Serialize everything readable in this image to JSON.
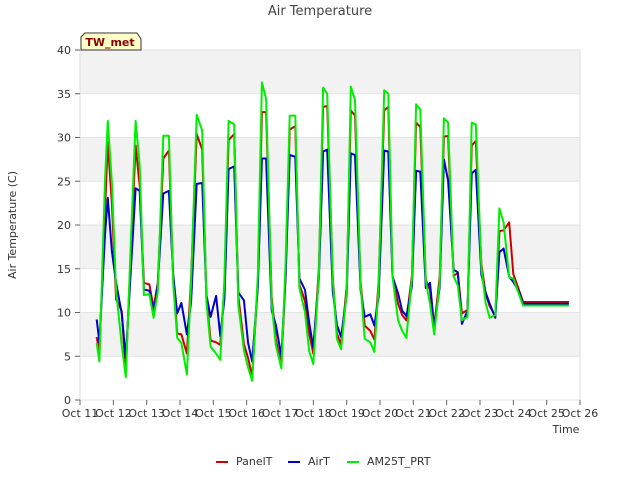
{
  "chart_data": {
    "type": "line",
    "title": "Air Temperature",
    "xlabel": "Time",
    "ylabel": "Air Temperature (C)",
    "station_label": "TW_met",
    "xlim": [
      "Oct 11",
      "Oct 26"
    ],
    "ylim": [
      0,
      40
    ],
    "x_ticks": [
      "Oct 11",
      "Oct 12",
      "Oct 13",
      "Oct 14",
      "Oct 15",
      "Oct 16",
      "Oct 17",
      "Oct 18",
      "Oct 19",
      "Oct 20",
      "Oct 21",
      "Oct 22",
      "Oct 23",
      "Oct 24",
      "Oct 25",
      "Oct 26"
    ],
    "y_ticks": [
      0,
      5,
      10,
      15,
      20,
      25,
      30,
      35,
      40
    ],
    "grid": "alternating horizontal bands",
    "legend_position": "bottom",
    "x": [
      "Oct 11 12:00",
      "Oct 11 14:00",
      "Oct 11 18:00",
      "Oct 11 20:00",
      "Oct 11 23:00",
      "Oct 12 02:00",
      "Oct 12 06:00",
      "Oct 12 09:00",
      "Oct 12 12:00",
      "Oct 12 16:00",
      "Oct 12 19:00",
      "Oct 12 22:00",
      "Oct 13 02:00",
      "Oct 13 05:00",
      "Oct 13 08:00",
      "Oct 13 12:00",
      "Oct 13 16:00",
      "Oct 13 19:00",
      "Oct 13 22:00",
      "Oct 14 01:00",
      "Oct 14 05:00",
      "Oct 14 08:00",
      "Oct 14 12:00",
      "Oct 14 16:00",
      "Oct 14 19:00",
      "Oct 14 22:00",
      "Oct 15 02:00",
      "Oct 15 05:00",
      "Oct 15 08:00",
      "Oct 15 11:00",
      "Oct 15 15:00",
      "Oct 15 18:00",
      "Oct 15 22:00",
      "Oct 16 01:00",
      "Oct 16 04:00",
      "Oct 16 08:00",
      "Oct 16 11:00",
      "Oct 16 14:00",
      "Oct 16 18:00",
      "Oct 16 21:00",
      "Oct 17 01:00",
      "Oct 17 04:00",
      "Oct 17 07:00",
      "Oct 17 11:00",
      "Oct 17 14:00",
      "Oct 17 18:00",
      "Oct 17 21:00",
      "Oct 18 00:00",
      "Oct 18 04:00",
      "Oct 18 07:00",
      "Oct 18 10:00",
      "Oct 18 14:00",
      "Oct 18 17:00",
      "Oct 18 20:00",
      "Oct 19 00:00",
      "Oct 19 03:00",
      "Oct 19 06:00",
      "Oct 19 10:00",
      "Oct 19 13:00",
      "Oct 19 17:00",
      "Oct 19 20:00",
      "Oct 19 23:00",
      "Oct 20 03:00",
      "Oct 20 06:00",
      "Oct 20 09:00",
      "Oct 20 13:00",
      "Oct 20 16:00",
      "Oct 20 19:00",
      "Oct 20 23:00",
      "Oct 21 02:00",
      "Oct 21 05:00",
      "Oct 21 09:00",
      "Oct 21 12:00",
      "Oct 21 15:00",
      "Oct 21 19:00",
      "Oct 21 22:00",
      "Oct 22 01:00",
      "Oct 22 05:00",
      "Oct 22 08:00",
      "Oct 22 11:00",
      "Oct 22 15:00",
      "Oct 22 18:00",
      "Oct 22 21:00",
      "Oct 23 01:00",
      "Oct 23 04:00",
      "Oct 23 07:00",
      "Oct 23 11:00",
      "Oct 23 14:00",
      "Oct 23 17:00",
      "Oct 23 21:00",
      "Oct 24 00:00",
      "Oct 24 04:00",
      "Oct 24 07:00",
      "Oct 24 10:00",
      "Oct 24 14:00",
      "Oct 24 17:00",
      "Oct 24 20:00",
      "Oct 24 23:00",
      "Oct 25 03:00",
      "Oct 25 06:00",
      "Oct 25 10:00",
      "Oct 25 13:00",
      "Oct 25 16:00"
    ],
    "series": [
      {
        "name": "PanelT",
        "color": "#cc0000",
        "values": [
          7.2,
          5.4,
          21.7,
          29.5,
          22.4,
          11.5,
          10.2,
          3.2,
          14.8,
          29.1,
          24.5,
          13.4,
          13.2,
          10.5,
          13.4,
          27.6,
          28.5,
          14.5,
          7.6,
          7.5,
          5.3,
          14.0,
          30.4,
          28.6,
          11.9,
          6.8,
          6.6,
          6.3,
          12.9,
          29.7,
          30.4,
          11.9,
          6.4,
          4.8,
          2.7,
          13.3,
          32.9,
          32.9,
          11.7,
          7.0,
          3.9,
          14.2,
          30.9,
          31.3,
          13.2,
          11.3,
          7.6,
          5.3,
          15.1,
          33.5,
          33.6,
          14.0,
          7.6,
          6.3,
          13.0,
          33.1,
          32.5,
          13.5,
          8.5,
          7.9,
          6.9,
          13.5,
          33.1,
          33.5,
          14.2,
          11.0,
          9.7,
          9.1,
          14.2,
          31.7,
          31.2,
          13.7,
          12.6,
          8.3,
          14.1,
          30.1,
          30.2,
          14.2,
          14.5,
          9.9,
          10.3,
          29.1,
          29.6,
          15.5,
          12.2,
          10.7,
          9.6,
          19.3,
          19.4,
          20.3,
          14.4,
          12.6,
          11.2,
          11.2,
          11.2,
          11.2,
          11.2,
          11.2,
          11.2,
          11.2,
          11.2,
          11.2,
          11.2
        ]
      },
      {
        "name": "AirT",
        "color": "#0000cc",
        "values": [
          9.2,
          6.6,
          18.9,
          23.1,
          17.0,
          13.4,
          9.9,
          4.8,
          13.2,
          24.2,
          23.9,
          12.6,
          12.5,
          10.0,
          13.2,
          23.6,
          23.9,
          14.4,
          9.9,
          11.1,
          7.5,
          11.2,
          24.7,
          24.8,
          12.0,
          9.5,
          11.9,
          7.3,
          11.5,
          26.4,
          26.7,
          12.3,
          11.4,
          6.5,
          4.4,
          12.9,
          27.6,
          27.6,
          10.2,
          8.6,
          5.0,
          14.2,
          28.0,
          27.8,
          13.9,
          12.6,
          8.8,
          6.0,
          13.9,
          28.4,
          28.6,
          12.4,
          8.6,
          7.2,
          12.0,
          28.2,
          28.0,
          12.6,
          9.5,
          9.8,
          8.5,
          11.8,
          28.5,
          28.4,
          14.1,
          12.2,
          10.2,
          9.6,
          13.0,
          26.2,
          26.1,
          12.8,
          13.4,
          8.3,
          12.9,
          27.5,
          25.1,
          14.9,
          14.6,
          8.7,
          10.2,
          25.9,
          26.3,
          14.3,
          12.3,
          11.0,
          9.4,
          16.9,
          17.3,
          14.1,
          13.5,
          12.4,
          11.0,
          11.0,
          11.0,
          11.0,
          11.0,
          11.0,
          11.0,
          11.0,
          11.0,
          11.0,
          11.0
        ]
      },
      {
        "name": "AM25T_PRT",
        "color": "#00ee00",
        "values": [
          6.5,
          4.4,
          25.1,
          31.9,
          24.8,
          12.5,
          6.3,
          2.6,
          15.5,
          31.9,
          26.8,
          12.0,
          12.1,
          9.4,
          12.4,
          30.2,
          30.2,
          13.5,
          7.1,
          6.5,
          2.9,
          13.5,
          32.6,
          30.8,
          11.2,
          6.1,
          5.3,
          4.6,
          13.8,
          31.9,
          31.5,
          10.9,
          5.7,
          3.7,
          2.2,
          14.2,
          36.3,
          34.4,
          11.0,
          6.3,
          3.6,
          15.7,
          32.5,
          32.5,
          12.8,
          10.0,
          5.6,
          4.1,
          14.4,
          35.7,
          35.0,
          13.8,
          7.0,
          5.8,
          12.3,
          35.8,
          34.3,
          13.2,
          7.0,
          6.6,
          5.5,
          13.0,
          35.4,
          35.0,
          14.1,
          9.1,
          7.9,
          7.1,
          13.9,
          33.8,
          33.2,
          13.6,
          11.0,
          7.5,
          13.4,
          32.2,
          31.7,
          14.1,
          13.1,
          9.1,
          9.5,
          31.7,
          31.5,
          15.1,
          11.1,
          9.4,
          9.7,
          21.9,
          20.3,
          14.0,
          13.9,
          12.1,
          10.8,
          10.8,
          10.8,
          10.8,
          10.8,
          10.8,
          10.8,
          10.8,
          10.8,
          10.8,
          10.8
        ]
      }
    ]
  }
}
